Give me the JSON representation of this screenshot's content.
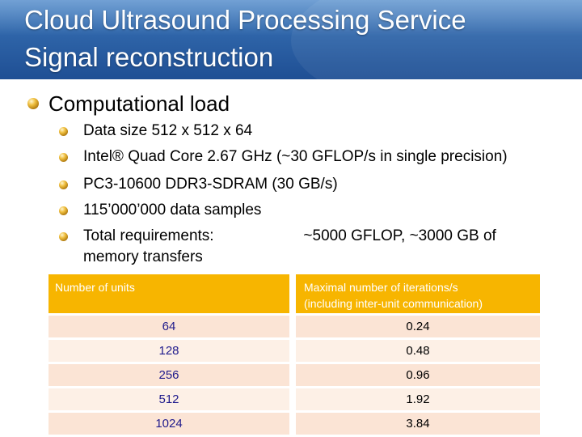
{
  "slide": {
    "title_line1": "Cloud Ultrasound Processing Service",
    "title_line2": "Signal reconstruction",
    "bullet": "Computational load",
    "sub_bullets": [
      "Data size 512 x 512 x 64",
      "Intel® Quad Core 2.67 GHz (~30 GFLOP/s in single precision)",
      "PC3-10600 DDR3-SDRAM (30 GB/s)",
      "115’000’000 data samples",
      "Total requirements:                     ~5000 GFLOP, ~3000 GB of"
    ],
    "sub_bullet_continuation": "memory transfers"
  },
  "table": {
    "headers": [
      "Number of units",
      "Maximal number of iterations/s (including inter-unit communication)"
    ],
    "header_b_line1": "Maximal number of iterations/s",
    "header_b_line2": "(including inter-unit communication)",
    "rows": [
      {
        "units": "64",
        "iterations": "0.24"
      },
      {
        "units": "128",
        "iterations": "0.48"
      },
      {
        "units": "256",
        "iterations": "0.96"
      },
      {
        "units": "512",
        "iterations": "1.92"
      },
      {
        "units": "1024",
        "iterations": "3.84"
      }
    ]
  },
  "colors": {
    "header_bar": "#2e64a8",
    "table_header": "#f7b500",
    "table_row": "#fbe4d5",
    "units_text": "#1f1a8c",
    "accent_red": "#c00000"
  },
  "icons": {
    "bullet": "gold-ball-bullet-icon"
  }
}
